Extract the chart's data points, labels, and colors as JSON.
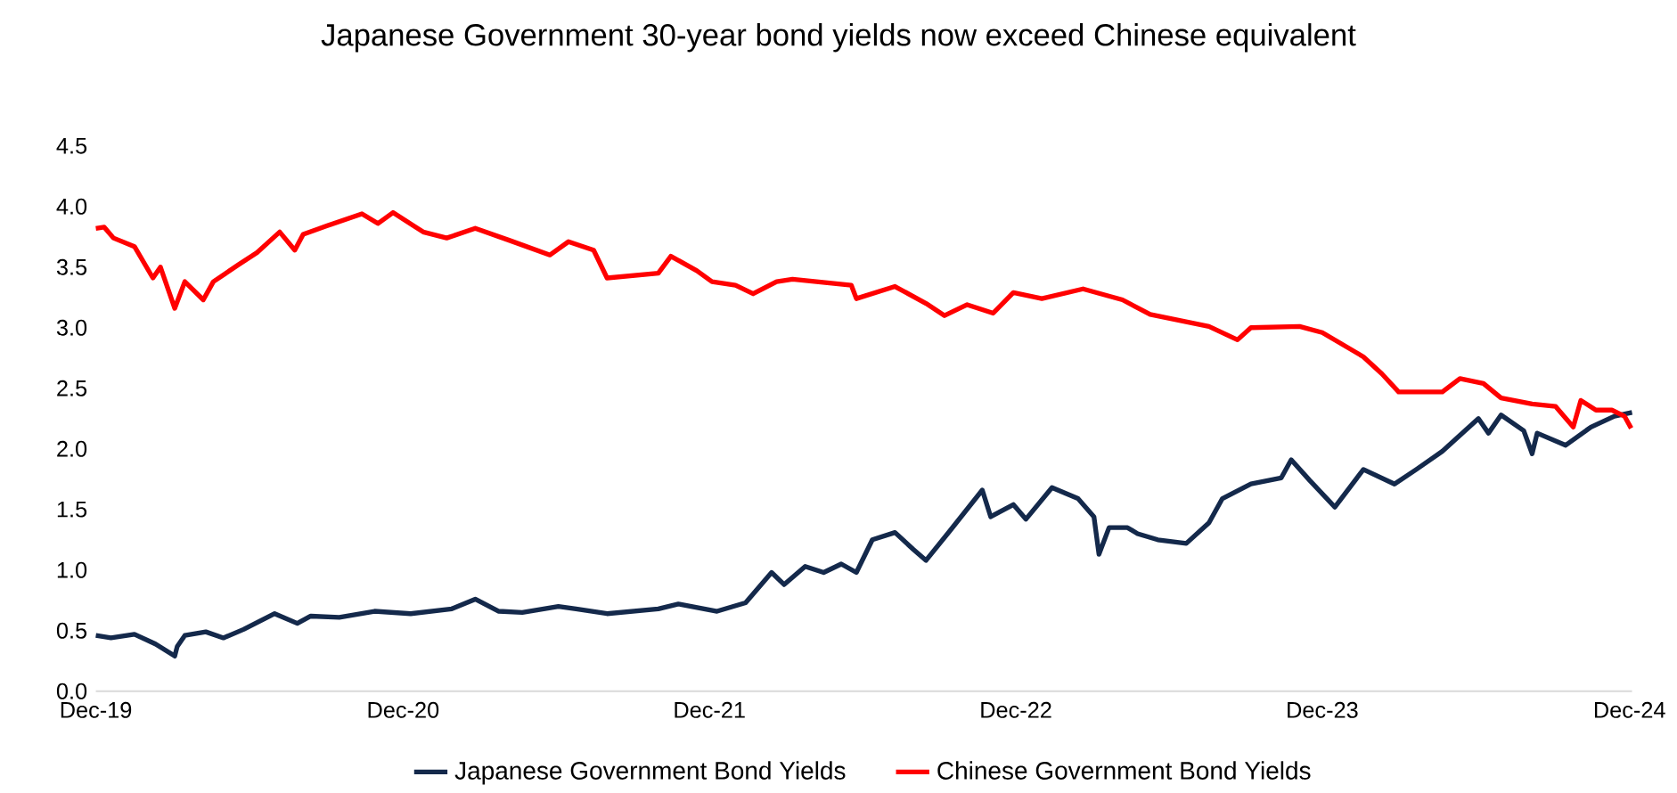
{
  "chart_data": {
    "type": "line",
    "title": "Japanese Government 30-year bond yields now exceed Chinese equivalent",
    "xlim": [
      "2019-12-01",
      "2024-12-04"
    ],
    "xticks": [
      {
        "value": "2019-12-01",
        "label": "Dec-19"
      },
      {
        "value": "2020-12-01",
        "label": "Dec-20"
      },
      {
        "value": "2021-12-01",
        "label": "Dec-21"
      },
      {
        "value": "2022-12-01",
        "label": "Dec-22"
      },
      {
        "value": "2023-12-01",
        "label": "Dec-23"
      },
      {
        "value": "2024-12-01",
        "label": "Dec-24"
      }
    ],
    "ylim": [
      0,
      4.5
    ],
    "yticks": [
      {
        "value": 0,
        "label": "0.0"
      },
      {
        "value": 0.5,
        "label": "0.5"
      },
      {
        "value": 1,
        "label": "1.0"
      },
      {
        "value": 1.5,
        "label": "1.5"
      },
      {
        "value": 2,
        "label": "2.0"
      },
      {
        "value": 2.5,
        "label": "2.5"
      },
      {
        "value": 3,
        "label": "3.0"
      },
      {
        "value": 3.5,
        "label": "3.5"
      },
      {
        "value": 4,
        "label": "4.0"
      },
      {
        "value": 4.5,
        "label": "4.5"
      }
    ],
    "grid": false,
    "legend": "bottom",
    "marker": "none",
    "line_style": "solid",
    "series": [
      {
        "name": "Japanese Government Bond Yields",
        "color": "#14294b",
        "x": [
          "2019-12-01",
          "2019-12-19",
          "2020-01-16",
          "2020-02-10",
          "2020-03-04",
          "2020-03-07",
          "2020-03-16",
          "2020-04-10",
          "2020-05-01",
          "2020-05-25",
          "2020-07-01",
          "2020-07-28",
          "2020-08-13",
          "2020-09-16",
          "2020-10-28",
          "2020-12-10",
          "2021-01-28",
          "2021-02-25",
          "2021-03-25",
          "2021-04-22",
          "2021-06-04",
          "2021-06-25",
          "2021-08-01",
          "2021-10-01",
          "2021-10-25",
          "2021-12-10",
          "2022-01-13",
          "2022-02-13",
          "2022-02-28",
          "2022-03-25",
          "2022-04-16",
          "2022-05-07",
          "2022-05-25",
          "2022-06-13",
          "2022-07-10",
          "2022-08-01",
          "2022-08-16",
          "2022-09-13",
          "2022-10-22",
          "2022-11-01",
          "2022-11-28",
          "2022-12-13",
          "2023-01-13",
          "2023-02-13",
          "2023-03-04",
          "2023-03-10",
          "2023-03-22",
          "2023-04-13",
          "2023-04-25",
          "2023-05-19",
          "2023-06-22",
          "2023-07-19",
          "2023-08-04",
          "2023-09-07",
          "2023-10-13",
          "2023-10-25",
          "2023-11-16",
          "2023-12-16",
          "2024-01-19",
          "2024-02-25",
          "2024-03-22",
          "2024-04-22",
          "2024-06-04",
          "2024-06-16",
          "2024-07-01",
          "2024-07-28",
          "2024-08-07",
          "2024-08-13",
          "2024-09-16",
          "2024-10-16",
          "2024-11-13",
          "2024-12-04"
        ],
        "values": [
          0.46,
          0.44,
          0.47,
          0.39,
          0.29,
          0.37,
          0.46,
          0.49,
          0.44,
          0.51,
          0.64,
          0.56,
          0.62,
          0.61,
          0.66,
          0.64,
          0.68,
          0.76,
          0.66,
          0.65,
          0.7,
          0.68,
          0.64,
          0.68,
          0.72,
          0.66,
          0.73,
          0.98,
          0.88,
          1.03,
          0.98,
          1.05,
          0.98,
          1.25,
          1.31,
          1.17,
          1.08,
          1.32,
          1.66,
          1.44,
          1.54,
          1.42,
          1.68,
          1.59,
          1.44,
          1.13,
          1.35,
          1.35,
          1.3,
          1.25,
          1.22,
          1.39,
          1.59,
          1.71,
          1.76,
          1.91,
          1.74,
          1.52,
          1.83,
          1.71,
          1.83,
          1.98,
          2.25,
          2.13,
          2.28,
          2.15,
          1.96,
          2.13,
          2.03,
          2.18,
          2.27,
          2.3
        ]
      },
      {
        "name": "Chinese Government Bond Yields",
        "color": "#ff0000",
        "x": [
          "2019-12-01",
          "2019-12-11",
          "2019-12-22",
          "2020-01-16",
          "2020-02-07",
          "2020-02-16",
          "2020-03-04",
          "2020-03-16",
          "2020-04-07",
          "2020-04-19",
          "2020-05-19",
          "2020-06-10",
          "2020-07-07",
          "2020-07-25",
          "2020-08-04",
          "2020-09-01",
          "2020-10-13",
          "2020-11-01",
          "2020-11-19",
          "2020-12-25",
          "2021-01-22",
          "2021-02-25",
          "2021-04-07",
          "2021-05-25",
          "2021-06-16",
          "2021-07-16",
          "2021-08-01",
          "2021-10-01",
          "2021-10-16",
          "2021-11-16",
          "2021-12-04",
          "2022-01-01",
          "2022-01-22",
          "2022-02-19",
          "2022-03-10",
          "2022-05-19",
          "2022-05-25",
          "2022-07-10",
          "2022-08-16",
          "2022-09-07",
          "2022-10-04",
          "2022-11-04",
          "2022-11-28",
          "2023-01-01",
          "2023-02-19",
          "2023-04-07",
          "2023-05-10",
          "2023-07-19",
          "2023-08-22",
          "2023-09-07",
          "2023-11-04",
          "2023-12-01",
          "2024-01-19",
          "2024-02-10",
          "2024-03-01",
          "2024-04-22",
          "2024-05-13",
          "2024-06-10",
          "2024-07-01",
          "2024-08-07",
          "2024-09-04",
          "2024-09-25",
          "2024-10-04",
          "2024-10-22",
          "2024-11-10",
          "2024-11-25",
          "2024-12-03"
        ],
        "values": [
          3.82,
          3.83,
          3.74,
          3.67,
          3.41,
          3.5,
          3.16,
          3.38,
          3.23,
          3.38,
          3.52,
          3.62,
          3.79,
          3.64,
          3.77,
          3.84,
          3.94,
          3.86,
          3.95,
          3.79,
          3.74,
          3.82,
          3.72,
          3.6,
          3.71,
          3.64,
          3.41,
          3.45,
          3.59,
          3.47,
          3.38,
          3.35,
          3.28,
          3.38,
          3.4,
          3.35,
          3.24,
          3.34,
          3.2,
          3.1,
          3.19,
          3.12,
          3.29,
          3.24,
          3.32,
          3.23,
          3.11,
          3.01,
          2.9,
          3.0,
          3.01,
          2.96,
          2.76,
          2.62,
          2.47,
          2.47,
          2.58,
          2.54,
          2.42,
          2.37,
          2.35,
          2.18,
          2.4,
          2.32,
          2.32,
          2.27,
          2.17
        ]
      }
    ]
  }
}
